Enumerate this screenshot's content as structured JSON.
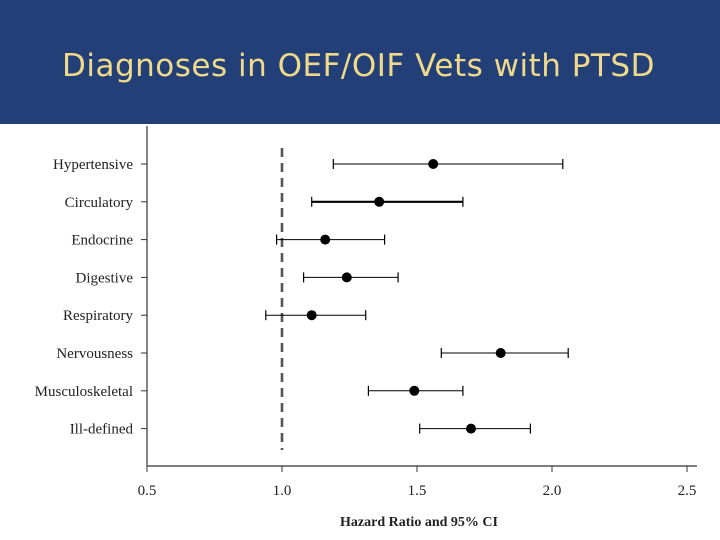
{
  "header": {
    "title": "Diagnoses in OEF/OIF Vets with PTSD"
  },
  "colors": {
    "banner": "#223f77",
    "title": "#efd98a",
    "marks": "#000000",
    "reference_line": "#555555"
  },
  "chart_data": {
    "type": "forest",
    "xlabel": "Hazard Ratio and 95% CI",
    "xlim": [
      0.5,
      2.5
    ],
    "xticks": [
      0.5,
      1.0,
      1.5,
      2.0,
      2.5
    ],
    "xtick_labels": [
      "0.5",
      "1.0",
      "1.5",
      "2.0",
      "2.5"
    ],
    "reference_line": 1.0,
    "categories": [
      "Hypertensive",
      "Circulatory",
      "Endocrine",
      "Digestive",
      "Respiratory",
      "Nervousness",
      "Musculoskeletal",
      "Ill-defined"
    ],
    "estimates": [
      1.56,
      1.36,
      1.16,
      1.24,
      1.11,
      1.81,
      1.49,
      1.7
    ],
    "ci_lower": [
      1.19,
      1.11,
      0.98,
      1.08,
      0.94,
      1.59,
      1.32,
      1.51
    ],
    "ci_upper": [
      2.04,
      1.67,
      1.38,
      1.43,
      1.31,
      2.06,
      1.67,
      1.92
    ],
    "grid": false
  }
}
